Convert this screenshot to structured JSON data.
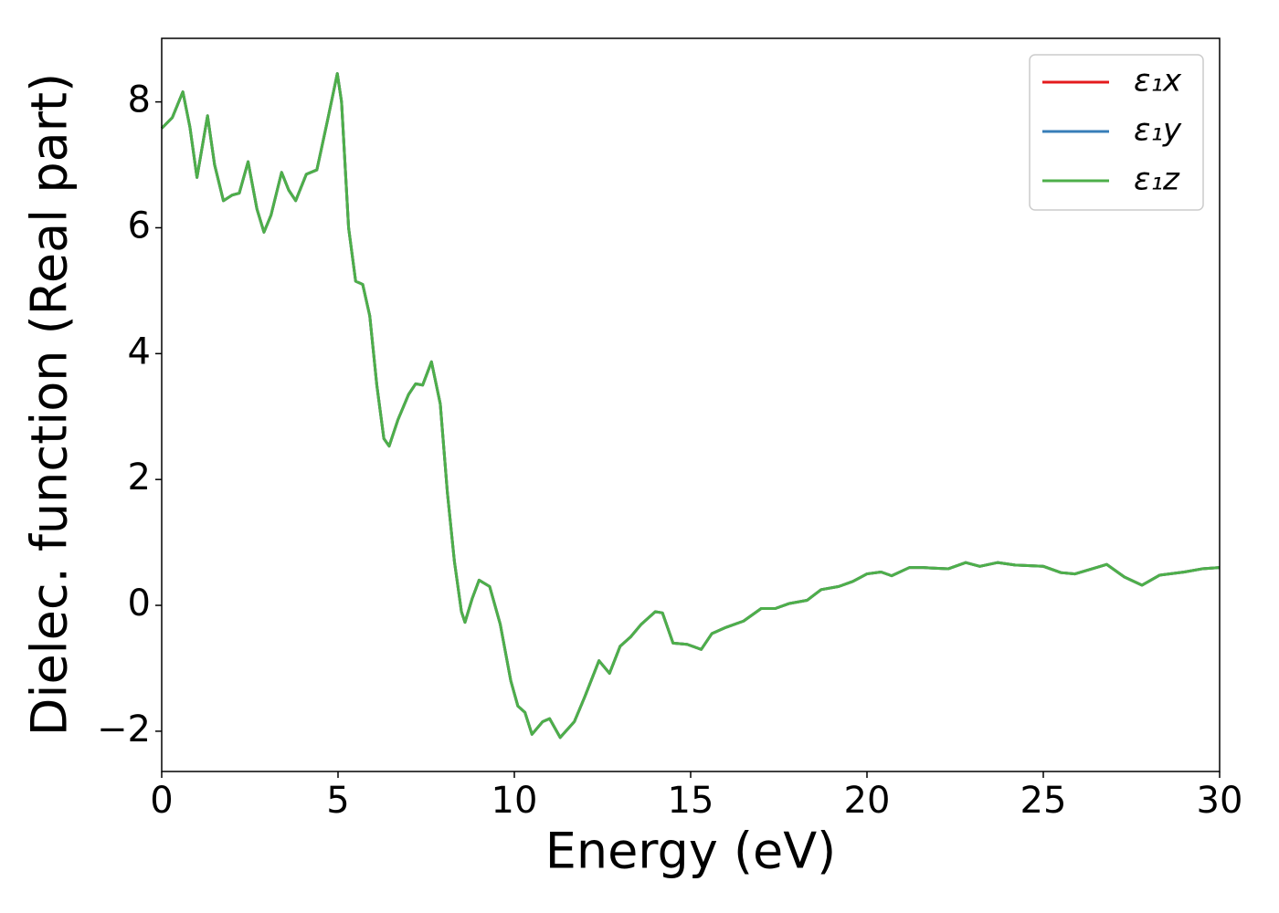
{
  "chart_data": {
    "type": "line",
    "xlabel": "Energy (eV)",
    "ylabel": "Dielec. function (Real part)",
    "x": [
      0,
      0.3,
      0.6,
      0.8,
      1.0,
      1.3,
      1.5,
      1.75,
      2.0,
      2.2,
      2.45,
      2.7,
      2.9,
      3.1,
      3.4,
      3.6,
      3.8,
      4.1,
      4.4,
      4.7,
      4.98,
      5.1,
      5.3,
      5.5,
      5.7,
      5.9,
      6.1,
      6.3,
      6.45,
      6.7,
      7.0,
      7.2,
      7.4,
      7.65,
      7.9,
      8.1,
      8.3,
      8.5,
      8.6,
      8.8,
      9.0,
      9.3,
      9.6,
      9.9,
      10.1,
      10.3,
      10.5,
      10.8,
      11.0,
      11.3,
      11.7,
      12.0,
      12.4,
      12.7,
      13.0,
      13.3,
      13.6,
      14.0,
      14.2,
      14.5,
      14.9,
      15.3,
      15.6,
      16.0,
      16.5,
      17.0,
      17.4,
      17.8,
      18.3,
      18.7,
      19.2,
      19.6,
      20.0,
      20.4,
      20.7,
      21.2,
      21.6,
      22.3,
      22.8,
      23.2,
      23.7,
      24.2,
      25.0,
      25.5,
      25.9,
      26.5,
      26.8,
      27.3,
      27.8,
      28.3,
      29.0,
      29.5,
      30.0
    ],
    "series": [
      {
        "name": "ε₁x",
        "color": "#e41a1c",
        "values": [
          7.58,
          7.75,
          8.16,
          7.6,
          6.8,
          7.78,
          7.0,
          6.43,
          6.52,
          6.55,
          7.05,
          6.3,
          5.93,
          6.2,
          6.88,
          6.6,
          6.43,
          6.85,
          6.92,
          7.7,
          8.45,
          8.0,
          6.0,
          5.15,
          5.1,
          4.6,
          3.5,
          2.65,
          2.53,
          2.95,
          3.35,
          3.52,
          3.5,
          3.87,
          3.2,
          1.8,
          0.7,
          -0.1,
          -0.27,
          0.1,
          0.4,
          0.3,
          -0.3,
          -1.2,
          -1.6,
          -1.7,
          -2.05,
          -1.85,
          -1.8,
          -2.1,
          -1.85,
          -1.45,
          -0.88,
          -1.08,
          -0.65,
          -0.5,
          -0.3,
          -0.1,
          -0.12,
          -0.6,
          -0.62,
          -0.7,
          -0.45,
          -0.35,
          -0.25,
          -0.05,
          -0.05,
          0.03,
          0.08,
          0.25,
          0.3,
          0.38,
          0.5,
          0.53,
          0.47,
          0.6,
          0.6,
          0.58,
          0.68,
          0.62,
          0.68,
          0.64,
          0.62,
          0.52,
          0.5,
          0.6,
          0.65,
          0.45,
          0.32,
          0.48,
          0.53,
          0.58,
          0.6
        ]
      },
      {
        "name": "ε₁y",
        "color": "#377eb8",
        "values": [
          7.58,
          7.75,
          8.16,
          7.6,
          6.8,
          7.78,
          7.0,
          6.43,
          6.52,
          6.55,
          7.05,
          6.3,
          5.93,
          6.2,
          6.88,
          6.6,
          6.43,
          6.85,
          6.92,
          7.7,
          8.45,
          8.0,
          6.0,
          5.15,
          5.1,
          4.6,
          3.5,
          2.65,
          2.53,
          2.95,
          3.35,
          3.52,
          3.5,
          3.87,
          3.2,
          1.8,
          0.7,
          -0.1,
          -0.27,
          0.1,
          0.4,
          0.3,
          -0.3,
          -1.2,
          -1.6,
          -1.7,
          -2.05,
          -1.85,
          -1.8,
          -2.1,
          -1.85,
          -1.45,
          -0.88,
          -1.08,
          -0.65,
          -0.5,
          -0.3,
          -0.1,
          -0.12,
          -0.6,
          -0.62,
          -0.7,
          -0.45,
          -0.35,
          -0.25,
          -0.05,
          -0.05,
          0.03,
          0.08,
          0.25,
          0.3,
          0.38,
          0.5,
          0.53,
          0.47,
          0.6,
          0.6,
          0.58,
          0.68,
          0.62,
          0.68,
          0.64,
          0.62,
          0.52,
          0.5,
          0.6,
          0.65,
          0.45,
          0.32,
          0.48,
          0.53,
          0.58,
          0.6
        ]
      },
      {
        "name": "ε₁z",
        "color": "#4daf4a",
        "values": [
          7.58,
          7.75,
          8.16,
          7.6,
          6.8,
          7.78,
          7.0,
          6.43,
          6.52,
          6.55,
          7.05,
          6.3,
          5.93,
          6.2,
          6.88,
          6.6,
          6.43,
          6.85,
          6.92,
          7.7,
          8.45,
          8.0,
          6.0,
          5.15,
          5.1,
          4.6,
          3.5,
          2.65,
          2.53,
          2.95,
          3.35,
          3.52,
          3.5,
          3.87,
          3.2,
          1.8,
          0.7,
          -0.1,
          -0.27,
          0.1,
          0.4,
          0.3,
          -0.3,
          -1.2,
          -1.6,
          -1.7,
          -2.05,
          -1.85,
          -1.8,
          -2.1,
          -1.85,
          -1.45,
          -0.88,
          -1.08,
          -0.65,
          -0.5,
          -0.3,
          -0.1,
          -0.12,
          -0.6,
          -0.62,
          -0.7,
          -0.45,
          -0.35,
          -0.25,
          -0.05,
          -0.05,
          0.03,
          0.08,
          0.25,
          0.3,
          0.38,
          0.5,
          0.53,
          0.47,
          0.6,
          0.6,
          0.58,
          0.68,
          0.62,
          0.68,
          0.64,
          0.62,
          0.52,
          0.5,
          0.6,
          0.65,
          0.45,
          0.32,
          0.48,
          0.53,
          0.58,
          0.6
        ]
      }
    ],
    "xlim": [
      0,
      30
    ],
    "xticks": [
      0,
      5,
      10,
      15,
      20,
      25,
      30
    ],
    "ylim": [
      -2.64,
      9.01
    ],
    "yticks": [
      {
        "value": -2,
        "label": "−2"
      },
      0,
      2,
      4,
      6,
      8
    ],
    "grid": false,
    "legend": "upper right"
  }
}
